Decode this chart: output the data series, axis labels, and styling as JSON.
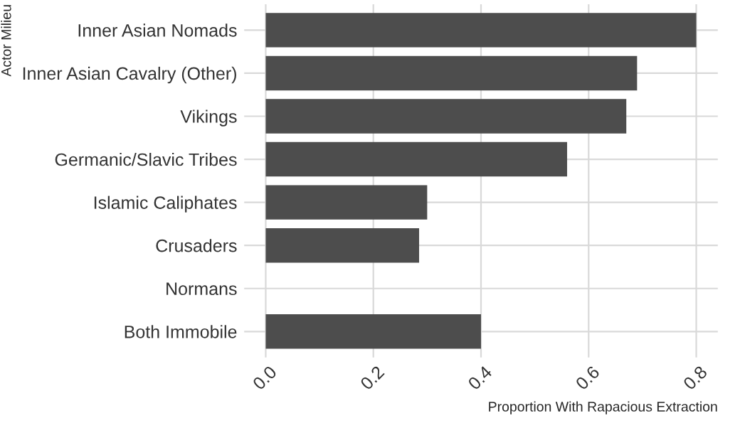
{
  "chart_data": {
    "type": "bar",
    "orientation": "horizontal",
    "xlabel": "Proportion With Rapacious Extraction",
    "ylabel": "Actor Milieu",
    "categories": [
      "Inner Asian Nomads",
      "Inner Asian Cavalry (Other)",
      "Vikings",
      "Germanic/Slavic Tribes",
      "Islamic Caliphates",
      "Crusaders",
      "Normans",
      "Both Immobile"
    ],
    "values": [
      0.8,
      0.69,
      0.67,
      0.56,
      0.3,
      0.285,
      0,
      0.4
    ],
    "color": "#4d4d4d",
    "xlim": [
      -0.04,
      0.84
    ],
    "xticks": [
      "0.0",
      0.2,
      0.4,
      0.6,
      0.8
    ],
    "grid": true
  }
}
